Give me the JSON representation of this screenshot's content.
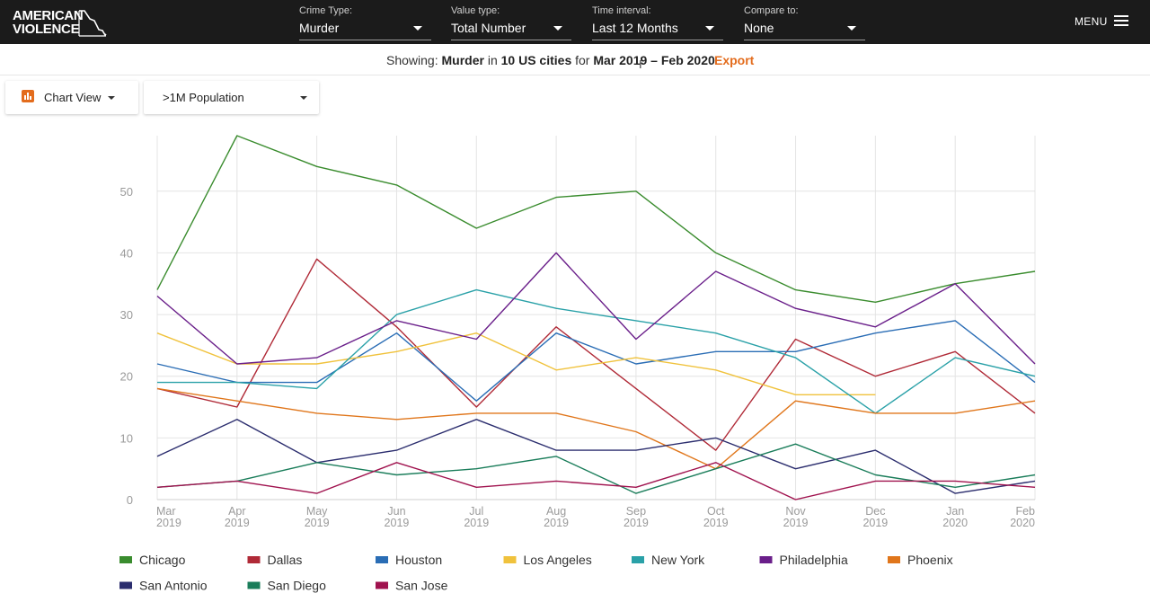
{
  "header": {
    "logo_line1": "AMERICAN",
    "logo_line2": "VIOLENCE",
    "filters": [
      {
        "label": "Crime Type:",
        "value": "Murder"
      },
      {
        "label": "Value type:",
        "value": "Total Number"
      },
      {
        "label": "Time interval:",
        "value": "Last 12 Months"
      },
      {
        "label": "Compare to:",
        "value": "None"
      }
    ],
    "menu_label": "MENU"
  },
  "showing": {
    "prefix": "Showing:",
    "crime": "Murder",
    "in_text": "in",
    "cities": "10 US cities",
    "for_text": "for",
    "range": "Mar 2019 – Feb 2020",
    "export_label": "Export"
  },
  "controls": {
    "view_label": "Chart View",
    "population_label": ">1M Population"
  },
  "colors": {
    "accent": "#e36c1d"
  },
  "chart_data": {
    "type": "line",
    "x": [
      "Mar 2019",
      "Apr 2019",
      "May 2019",
      "Jun 2019",
      "Jul 2019",
      "Aug 2019",
      "Sep 2019",
      "Oct 2019",
      "Nov 2019",
      "Dec 2019",
      "Jan 2020",
      "Feb 2020"
    ],
    "ylim": [
      0,
      59
    ],
    "yticks": [
      0,
      10,
      20,
      30,
      40,
      50
    ],
    "grid": true,
    "legend_position": "bottom",
    "series": [
      {
        "name": "Chicago",
        "color": "#3a8c2e",
        "values": [
          34,
          59,
          54,
          51,
          44,
          49,
          50,
          40,
          34,
          32,
          35,
          37
        ]
      },
      {
        "name": "Dallas",
        "color": "#b02a37",
        "values": [
          18,
          15,
          39,
          28,
          15,
          28,
          18,
          8,
          26,
          20,
          24,
          14
        ]
      },
      {
        "name": "Houston",
        "color": "#2a6db5",
        "values": [
          22,
          19,
          19,
          27,
          16,
          27,
          22,
          24,
          24,
          27,
          29,
          19
        ]
      },
      {
        "name": "Los Angeles",
        "color": "#f0c23c",
        "values": [
          27,
          22,
          22,
          24,
          27,
          21,
          23,
          21,
          17,
          17,
          null,
          null
        ]
      },
      {
        "name": "New York",
        "color": "#2aa1a8",
        "values": [
          19,
          19,
          18,
          30,
          34,
          31,
          29,
          27,
          23,
          14,
          23,
          20
        ]
      },
      {
        "name": "Philadelphia",
        "color": "#6a1f8a",
        "values": [
          33,
          22,
          23,
          29,
          26,
          40,
          26,
          37,
          31,
          28,
          35,
          22
        ]
      },
      {
        "name": "Phoenix",
        "color": "#e0761b",
        "values": [
          18,
          16,
          14,
          13,
          14,
          14,
          11,
          5,
          16,
          14,
          14,
          16
        ]
      },
      {
        "name": "San Antonio",
        "color": "#2b2d6e",
        "values": [
          7,
          13,
          6,
          8,
          13,
          8,
          8,
          10,
          5,
          8,
          1,
          3
        ]
      },
      {
        "name": "San Diego",
        "color": "#1a7d5a",
        "values": [
          2,
          3,
          6,
          4,
          5,
          7,
          1,
          5,
          9,
          4,
          2,
          4
        ]
      },
      {
        "name": "San Jose",
        "color": "#a0124e",
        "values": [
          2,
          3,
          1,
          6,
          2,
          3,
          2,
          6,
          0,
          3,
          3,
          2
        ]
      }
    ]
  }
}
